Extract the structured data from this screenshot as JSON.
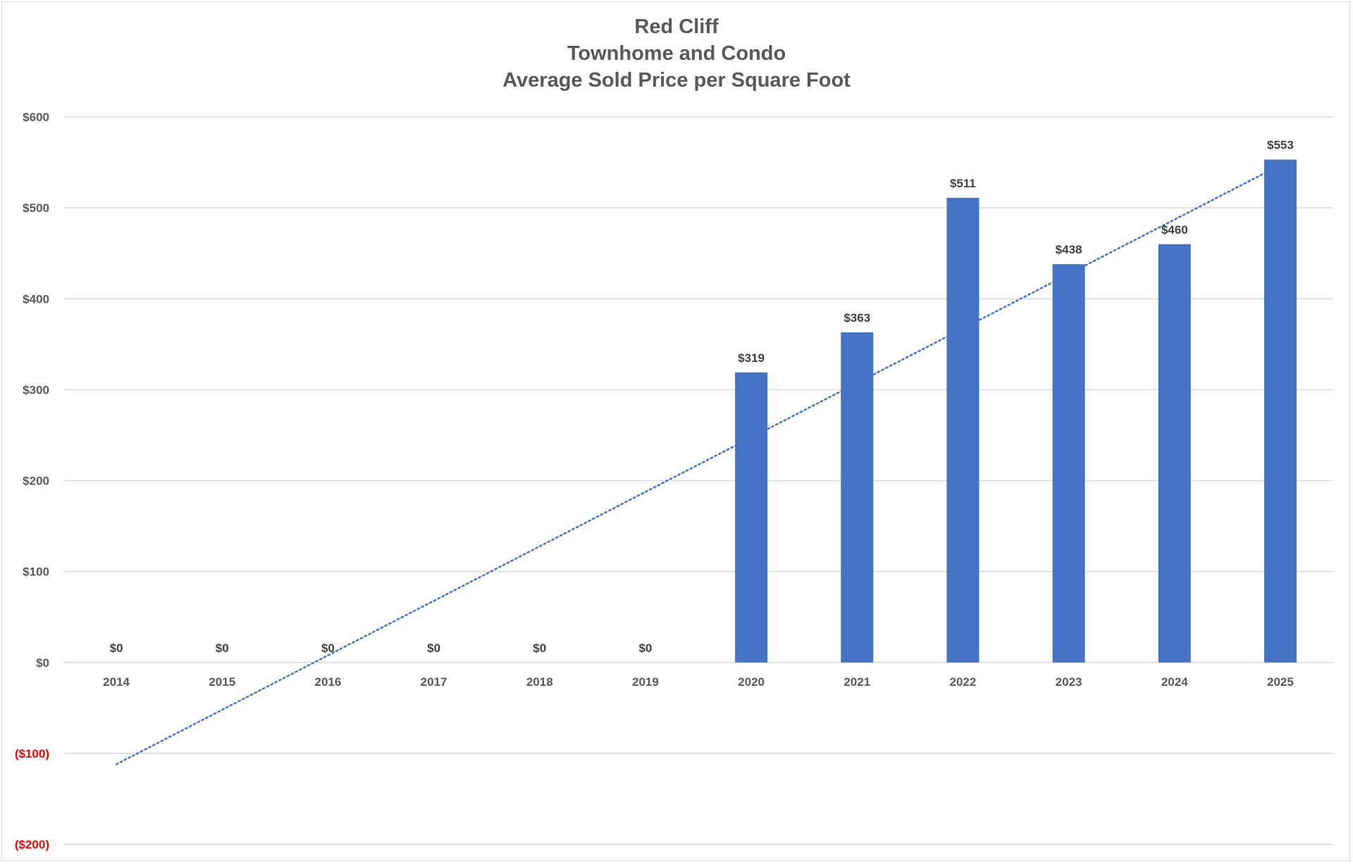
{
  "chart_data": {
    "type": "bar",
    "title_lines": [
      "Red Cliff",
      "Townhome and Condo",
      "Average Sold Price per Square Foot"
    ],
    "categories": [
      "2014",
      "2015",
      "2016",
      "2017",
      "2018",
      "2019",
      "2020",
      "2021",
      "2022",
      "2023",
      "2024",
      "2025"
    ],
    "values": [
      0,
      0,
      0,
      0,
      0,
      0,
      319,
      363,
      511,
      438,
      460,
      553
    ],
    "data_labels": [
      "$0",
      "$0",
      "$0",
      "$0",
      "$0",
      "$0",
      "$319",
      "$363",
      "$511",
      "$438",
      "$460",
      "$553"
    ],
    "y_ticks": [
      {
        "value": 600,
        "label": "$600"
      },
      {
        "value": 500,
        "label": "$500"
      },
      {
        "value": 400,
        "label": "$400"
      },
      {
        "value": 300,
        "label": "$300"
      },
      {
        "value": 200,
        "label": "$200"
      },
      {
        "value": 100,
        "label": "$100"
      },
      {
        "value": 0,
        "label": "$0"
      },
      {
        "value": -100,
        "label": "($100)"
      },
      {
        "value": -200,
        "label": "($200)"
      }
    ],
    "ylim": [
      -200,
      600
    ],
    "grid": true,
    "trendline": {
      "type": "linear",
      "style": "dotted",
      "start": -112,
      "end": 547
    },
    "colors": {
      "bar": "#4472c4",
      "trendline": "#4472c4",
      "grid": "#d9d9d9",
      "axis_text": "#595959",
      "negative_tick": "#ff0000",
      "data_label": "#404040"
    }
  }
}
